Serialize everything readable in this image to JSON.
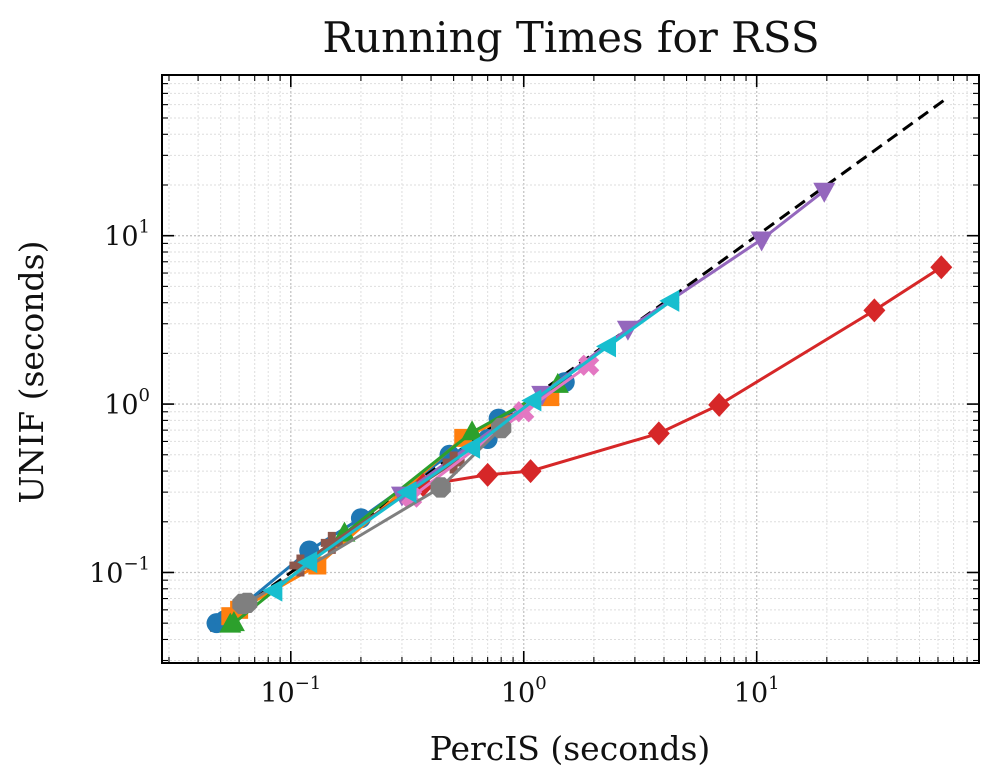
{
  "chart_data": {
    "type": "line",
    "title": "Running Times for RSS",
    "xlabel": "PercIS (seconds)",
    "ylabel": "UNIF (seconds)",
    "xscale": "log",
    "yscale": "log",
    "xlim": [
      0.028,
      90
    ],
    "ylim": [
      0.029,
      90
    ],
    "grid": "on (major and minor, dotted)",
    "x_ticks": [
      {
        "value": 0.1,
        "base": "10",
        "exp": "−1"
      },
      {
        "value": 1,
        "base": "10",
        "exp": "0"
      },
      {
        "value": 10,
        "base": "10",
        "exp": "1"
      }
    ],
    "y_ticks": [
      {
        "value": 0.1,
        "base": "10",
        "exp": "−1"
      },
      {
        "value": 1,
        "base": "10",
        "exp": "0"
      },
      {
        "value": 10,
        "base": "10",
        "exp": "1"
      }
    ],
    "reference_line": {
      "style": "dashed",
      "color": "#000000",
      "points": [
        [
          0.045,
          0.045
        ],
        [
          65,
          65
        ]
      ]
    },
    "series": [
      {
        "color": "#1f77b4",
        "marker": "circle",
        "points": [
          [
            0.048,
            0.05
          ],
          [
            0.052,
            0.052
          ],
          [
            0.12,
            0.135
          ],
          [
            0.2,
            0.21
          ],
          [
            0.48,
            0.5
          ],
          [
            0.7,
            0.62
          ],
          [
            0.78,
            0.82
          ],
          [
            1.5,
            1.35
          ]
        ]
      },
      {
        "color": "#ff7f0e",
        "marker": "square",
        "points": [
          [
            0.055,
            0.055
          ],
          [
            0.06,
            0.06
          ],
          [
            0.13,
            0.11
          ],
          [
            0.55,
            0.63
          ],
          [
            1.3,
            1.1
          ]
        ]
      },
      {
        "color": "#2ca02c",
        "marker": "triangle-up",
        "points": [
          [
            0.055,
            0.049
          ],
          [
            0.057,
            0.05
          ],
          [
            0.17,
            0.17
          ],
          [
            0.6,
            0.68
          ],
          [
            1.4,
            1.3
          ]
        ]
      },
      {
        "color": "#d62728",
        "marker": "diamond",
        "points": [
          [
            0.37,
            0.33
          ],
          [
            0.7,
            0.38
          ],
          [
            1.07,
            0.4
          ],
          [
            3.8,
            0.67
          ],
          [
            6.9,
            0.99
          ],
          [
            32,
            3.6
          ],
          [
            62,
            6.5
          ]
        ]
      },
      {
        "color": "#9467bd",
        "marker": "triangle-down",
        "points": [
          [
            0.3,
            0.29
          ],
          [
            1.2,
            1.15
          ],
          [
            2.8,
            2.8
          ],
          [
            10.5,
            9.5
          ],
          [
            19.5,
            18.5
          ]
        ]
      },
      {
        "color": "#8c564b",
        "marker": "plus-filled",
        "points": [
          [
            0.11,
            0.11
          ],
          [
            0.15,
            0.15
          ],
          [
            0.5,
            0.45
          ]
        ]
      },
      {
        "color": "#e377c2",
        "marker": "x-filled",
        "points": [
          [
            0.33,
            0.28
          ],
          [
            1.0,
            0.9
          ],
          [
            1.9,
            1.7
          ]
        ]
      },
      {
        "color": "#7f7f7f",
        "marker": "octagon",
        "points": [
          [
            0.062,
            0.065
          ],
          [
            0.065,
            0.066
          ],
          [
            0.44,
            0.32
          ],
          [
            0.8,
            0.72
          ]
        ]
      },
      {
        "color": "#17becf",
        "marker": "triangle-left",
        "points": [
          [
            0.085,
            0.078
          ],
          [
            0.12,
            0.115
          ],
          [
            0.32,
            0.3
          ],
          [
            0.6,
            0.55
          ],
          [
            1.1,
            1.05
          ],
          [
            2.3,
            2.2
          ],
          [
            4.3,
            4.1
          ]
        ]
      }
    ]
  }
}
